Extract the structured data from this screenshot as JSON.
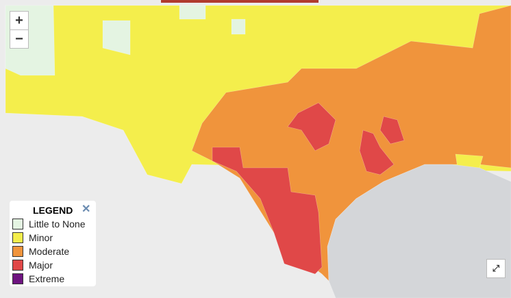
{
  "zoom": {
    "in": "+",
    "out": "−"
  },
  "legend": {
    "title": "LEGEND",
    "items": [
      {
        "label": "Little to None",
        "color": "#e4f4e2"
      },
      {
        "label": "Minor",
        "color": "#f4ee4c"
      },
      {
        "label": "Moderate",
        "color": "#f0943c"
      },
      {
        "label": "Major",
        "color": "#e04848"
      },
      {
        "label": "Extreme",
        "color": "#6e1480"
      }
    ]
  }
}
